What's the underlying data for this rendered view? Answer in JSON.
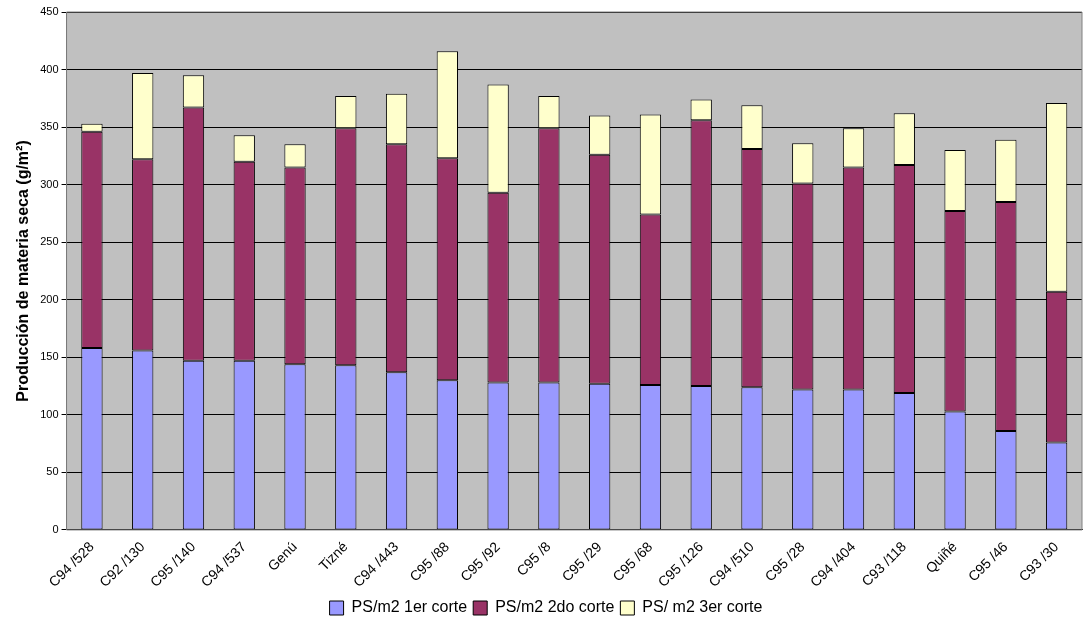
{
  "chart_data": {
    "type": "bar",
    "stacked": true,
    "ylabel": "Producción de materia seca (g/m²)",
    "categories": [
      "C94 /528",
      "C92 /130",
      "C95 /140",
      "C94 /537",
      "Genú",
      "Tizné",
      "C94 /443",
      "C95 /88",
      "C95 /92",
      "C95 /8",
      "C95 /29",
      "C95 /68",
      "C95 /126",
      "C94 /510",
      "C95 /28",
      "C94 /404",
      "C93 /118",
      "Quiñé",
      "C95 /46",
      "C93 /30"
    ],
    "series": [
      {
        "name": "PS/m2 1er corte",
        "color": "#9999ff",
        "values": [
          158,
          156,
          147,
          147,
          144,
          143,
          137,
          130,
          128,
          128,
          127,
          126,
          125,
          124,
          122,
          122,
          119,
          103,
          86,
          76
        ]
      },
      {
        "name": "PS/m2 2do corte",
        "color": "#993366",
        "values": [
          188,
          166,
          220,
          173,
          171,
          206,
          198,
          193,
          165,
          221,
          199,
          148,
          231,
          207,
          179,
          193,
          198,
          174,
          199,
          131
        ]
      },
      {
        "name": "PS/ m2 3er corte",
        "color": "#ffffcc",
        "values": [
          7,
          75,
          28,
          23,
          20,
          28,
          44,
          93,
          94,
          28,
          34,
          87,
          18,
          38,
          35,
          34,
          45,
          53,
          54,
          164
        ]
      }
    ],
    "ylim": [
      0,
      450
    ],
    "yticks": [
      0,
      50,
      100,
      150,
      200,
      250,
      300,
      350,
      400,
      450
    ],
    "grid": "y",
    "legend": "bottom"
  }
}
